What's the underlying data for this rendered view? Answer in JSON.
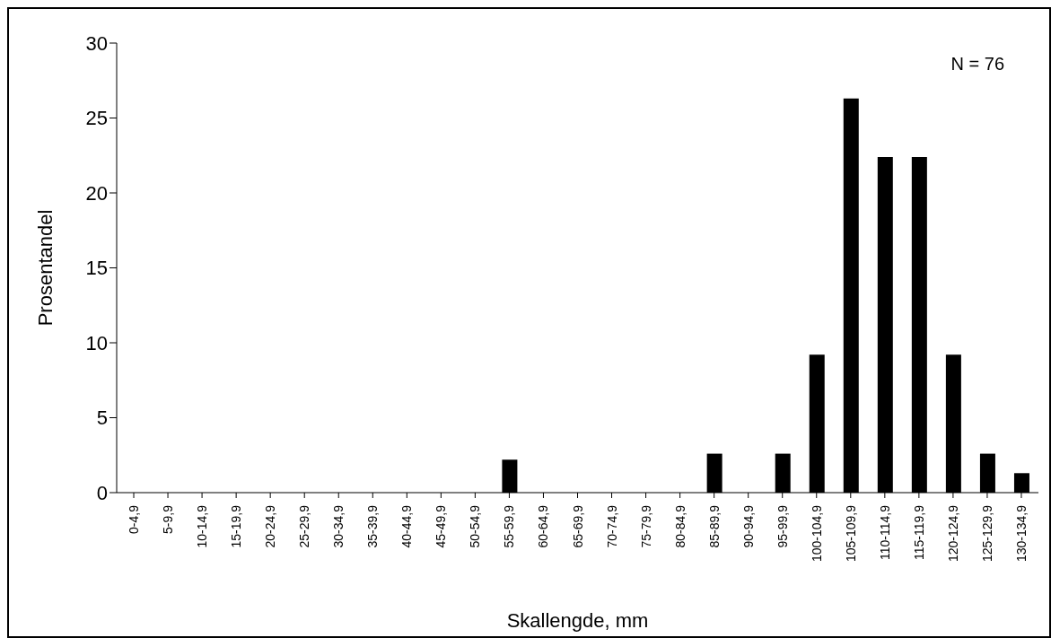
{
  "chart_data": {
    "type": "bar",
    "xlabel": "Skallengde,  mm",
    "ylabel": "Prosentandel",
    "categories": [
      "0-4,9",
      "5-9,9",
      "10-14,9",
      "15-19,9",
      "20-24,9",
      "25-29,9",
      "30-34,9",
      "35-39,9",
      "40-44,9",
      "45-49,9",
      "50-54,9",
      "55-59,9",
      "60-64,9",
      "65-69,9",
      "70-74,9",
      "75-79,9",
      "80-84,9",
      "85-89,9",
      "90-94,9",
      "95-99,9",
      "100-104,9",
      "105-109,9",
      "110-114,9",
      "115-119,9",
      "120-124,9",
      "125-129,9",
      "130-134,9"
    ],
    "values": [
      0,
      0,
      0,
      0,
      0,
      0,
      0,
      0,
      0,
      0,
      0,
      2.2,
      0,
      0,
      0,
      0,
      0,
      2.6,
      0,
      2.6,
      9.2,
      26.3,
      22.4,
      22.4,
      9.2,
      2.6,
      1.3
    ],
    "color": "#000000",
    "ylim": [
      0,
      30
    ],
    "yticks": [
      0,
      5,
      10,
      15,
      20,
      25,
      30
    ],
    "annotations": [
      "N = 76"
    ]
  }
}
